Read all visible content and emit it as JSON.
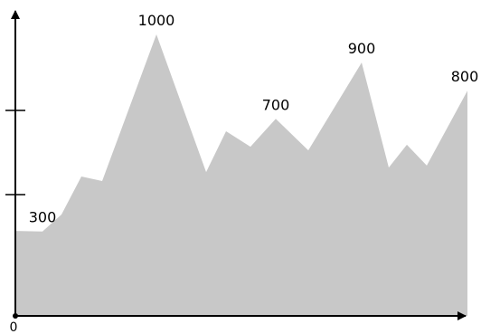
{
  "chart_data": {
    "type": "area",
    "color": "#c8c8c8",
    "x": [
      0,
      6,
      10.2,
      14.6,
      19.2,
      31.2,
      42.2,
      46.6,
      52,
      57.6,
      64.8,
      76.6,
      82.6,
      86.6,
      91,
      100
    ],
    "values": [
      302,
      300,
      360,
      495,
      479,
      1000,
      511,
      656,
      601,
      700,
      588,
      900,
      527,
      608,
      534,
      800
    ],
    "value_labels": [
      null,
      "300",
      null,
      null,
      null,
      "1000",
      null,
      null,
      null,
      "700",
      null,
      "900",
      null,
      null,
      null,
      "800"
    ],
    "xlim": [
      0,
      100
    ],
    "ylim": [
      0,
      1000
    ],
    "yticks": [
      431,
      730
    ],
    "origin_label": "0"
  }
}
